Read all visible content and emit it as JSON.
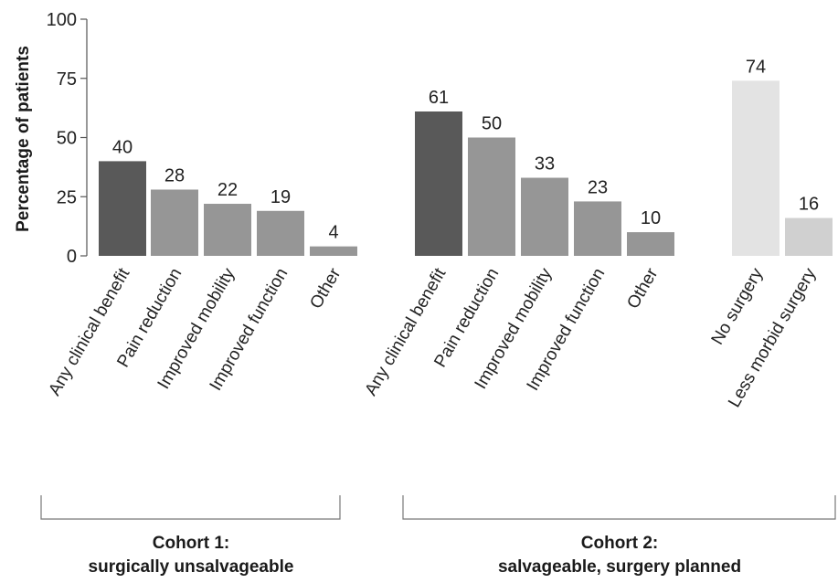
{
  "chart_data": {
    "type": "bar",
    "ylabel": "Percentage of patients",
    "ylim": [
      0,
      100
    ],
    "yticks": [
      0,
      25,
      50,
      75,
      100
    ],
    "grid": false,
    "legend": "none",
    "groups": [
      {
        "name_lines": [
          "Cohort 1:",
          "surgically unsalvageable"
        ],
        "bars": [
          {
            "label": "Any clinical benefit",
            "value": 40,
            "color": "#595959"
          },
          {
            "label": "Pain reduction",
            "value": 28,
            "color": "#969696"
          },
          {
            "label": "Improved mobility",
            "value": 22,
            "color": "#969696"
          },
          {
            "label": "Improved function",
            "value": 19,
            "color": "#969696"
          },
          {
            "label": "Other",
            "value": 4,
            "color": "#969696"
          }
        ]
      },
      {
        "name_lines": [
          "Cohort 2:",
          "salvageable, surgery planned"
        ],
        "bars": [
          {
            "label": "Any clinical benefit",
            "value": 61,
            "color": "#595959"
          },
          {
            "label": "Pain reduction",
            "value": 50,
            "color": "#969696"
          },
          {
            "label": "Improved mobility",
            "value": 33,
            "color": "#969696"
          },
          {
            "label": "Improved function",
            "value": 23,
            "color": "#969696"
          },
          {
            "label": "Other",
            "value": 10,
            "color": "#969696"
          },
          {
            "label": "No surgery",
            "value": 74,
            "color": "#e3e3e3"
          },
          {
            "label": "Less morbid surgery",
            "value": 16,
            "color": "#d0d0d0"
          }
        ]
      }
    ]
  }
}
